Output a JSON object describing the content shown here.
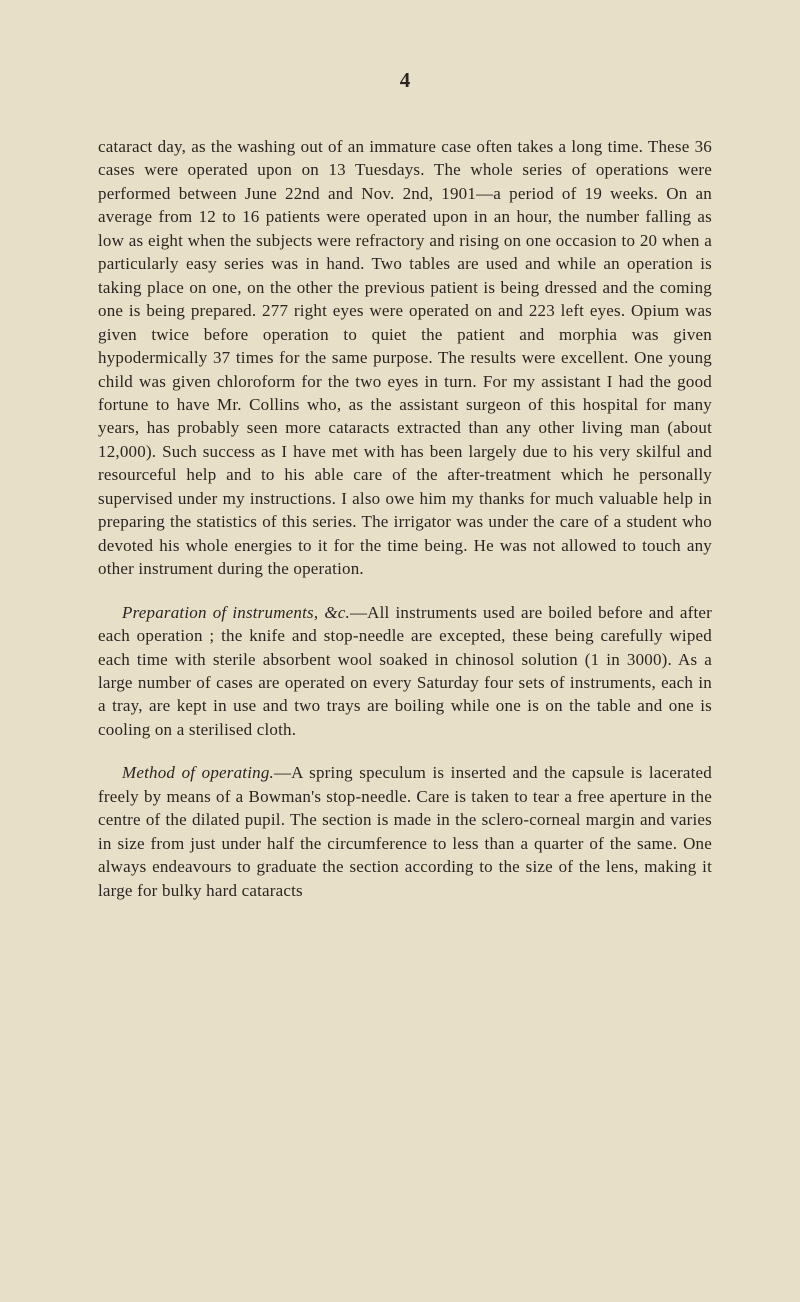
{
  "page": {
    "number": "4",
    "background_color": "#e8dfc8",
    "text_color": "#2a2520",
    "font_family": "Georgia, 'Times New Roman', serif",
    "body_font_size": 17,
    "page_number_font_size": 21,
    "line_height": 1.38
  },
  "paragraphs": {
    "p1": "cataract day, as the washing out of an immature case often takes a long time. These 36 cases were operated upon on 13 Tuesdays. The whole series of operations were performed between June 22nd and Nov. 2nd, 1901—a period of 19 weeks. On an average from 12 to 16 patients were operated upon in an hour, the number falling as low as eight when the subjects were refractory and rising on one occasion to 20 when a particularly easy series was in hand. Two tables are used and while an operation is taking place on one, on the other the previous patient is being dressed and the coming one is being prepared. 277 right eyes were operated on and 223 left eyes. Opium was given twice before operation to quiet the patient and morphia was given hypodermically 37 times for the same purpose. The results were excellent. One young child was given chloroform for the two eyes in turn. For my assistant I had the good fortune to have Mr. Collins who, as the assistant surgeon of this hospital for many years, has probably seen more cataracts extracted than any other living man (about 12,000). Such success as I have met with has been largely due to his very skilful and resourceful help and to his able care of the after-treatment which he personally supervised under my instructions. I also owe him my thanks for much valuable help in preparing the statistics of this series. The irrigator was under the care of a student who devoted his whole energies to it for the time being. He was not allowed to touch any other instrument during the operation.",
    "p2_heading": "Preparation of instruments, &c.",
    "p2_body": "—All instruments used are boiled before and after each operation ; the knife and stop-needle are excepted, these being carefully wiped each time with sterile absorbent wool soaked in chinosol solution (1 in 3000). As a large number of cases are operated on every Saturday four sets of instruments, each in a tray, are kept in use and two trays are boiling while one is on the table and one is cooling on a sterilised cloth.",
    "p3_heading": "Method of operating.",
    "p3_body": "—A spring speculum is inserted and the capsule is lacerated freely by means of a Bowman's stop-needle. Care is taken to tear a free aperture in the centre of the dilated pupil. The section is made in the sclero-corneal margin and varies in size from just under half the circumference to less than a quarter of the same. One always endeavours to graduate the section according to the size of the lens, making it large for bulky hard cataracts"
  }
}
